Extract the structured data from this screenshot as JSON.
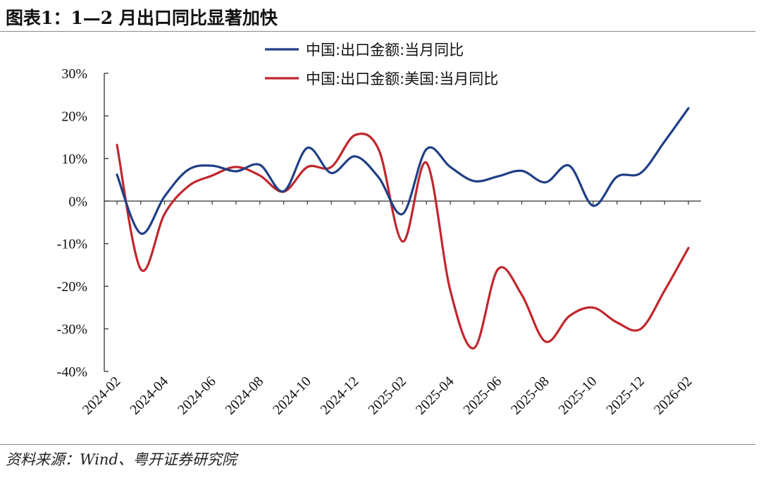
{
  "header": {
    "title": "图表1：1—2 月出口同比显著加快"
  },
  "footer": {
    "source": "资料来源：Wind、粤开证券研究院"
  },
  "colors": {
    "series_total": "#1f3f86",
    "series_us": "#c0272d",
    "axis": "#333333"
  },
  "chart_data": {
    "type": "line",
    "title": "图表1：1—2 月出口同比显著加快",
    "xlabel": "",
    "ylabel": "",
    "ylim": [
      -40,
      30
    ],
    "yticks": [
      30,
      20,
      10,
      0,
      -10,
      -20,
      -30,
      -40
    ],
    "ytick_labels": [
      "30%",
      "20%",
      "10%",
      "0%",
      "-10%",
      "-20%",
      "-30%",
      "-40%"
    ],
    "x": [
      "2024-02",
      "2024-03",
      "2024-04",
      "2024-05",
      "2024-06",
      "2024-07",
      "2024-08",
      "2024-09",
      "2024-10",
      "2024-11",
      "2024-12",
      "2025-01",
      "2025-02",
      "2025-03",
      "2025-04",
      "2025-05",
      "2025-06",
      "2025-07",
      "2025-08",
      "2025-09",
      "2025-10",
      "2025-11",
      "2025-12",
      "2026-01",
      "2026-02"
    ],
    "xtick_labels": [
      "2024-02",
      "2024-04",
      "2024-06",
      "2024-08",
      "2024-10",
      "2024-12",
      "2025-02",
      "2025-04",
      "2025-06",
      "2025-08",
      "2025-10",
      "2025-12",
      "2026-02"
    ],
    "grid": false,
    "legend_position": "top",
    "series": [
      {
        "name": "中国:出口金额:当月同比",
        "color_key": "series_total",
        "values": [
          6.2,
          -7.6,
          1.1,
          7.4,
          8.3,
          7.0,
          8.5,
          2.3,
          12.5,
          6.6,
          10.5,
          5.5,
          -3.0,
          12.2,
          8.0,
          4.7,
          5.8,
          7.1,
          4.4,
          8.3,
          -1.1,
          5.7,
          6.6,
          14.0,
          21.8
        ]
      },
      {
        "name": "中国:出口金额:美国:当月同比",
        "color_key": "series_us",
        "values": [
          13.2,
          -16.0,
          -3.0,
          3.5,
          6.0,
          8.0,
          6.0,
          2.2,
          8.0,
          8.0,
          15.5,
          12.0,
          -9.5,
          9.0,
          -21.0,
          -34.5,
          -16.0,
          -22.0,
          -33.0,
          -27.0,
          -25.0,
          -28.5,
          -30.0,
          -21.0,
          -11.0
        ]
      }
    ]
  }
}
